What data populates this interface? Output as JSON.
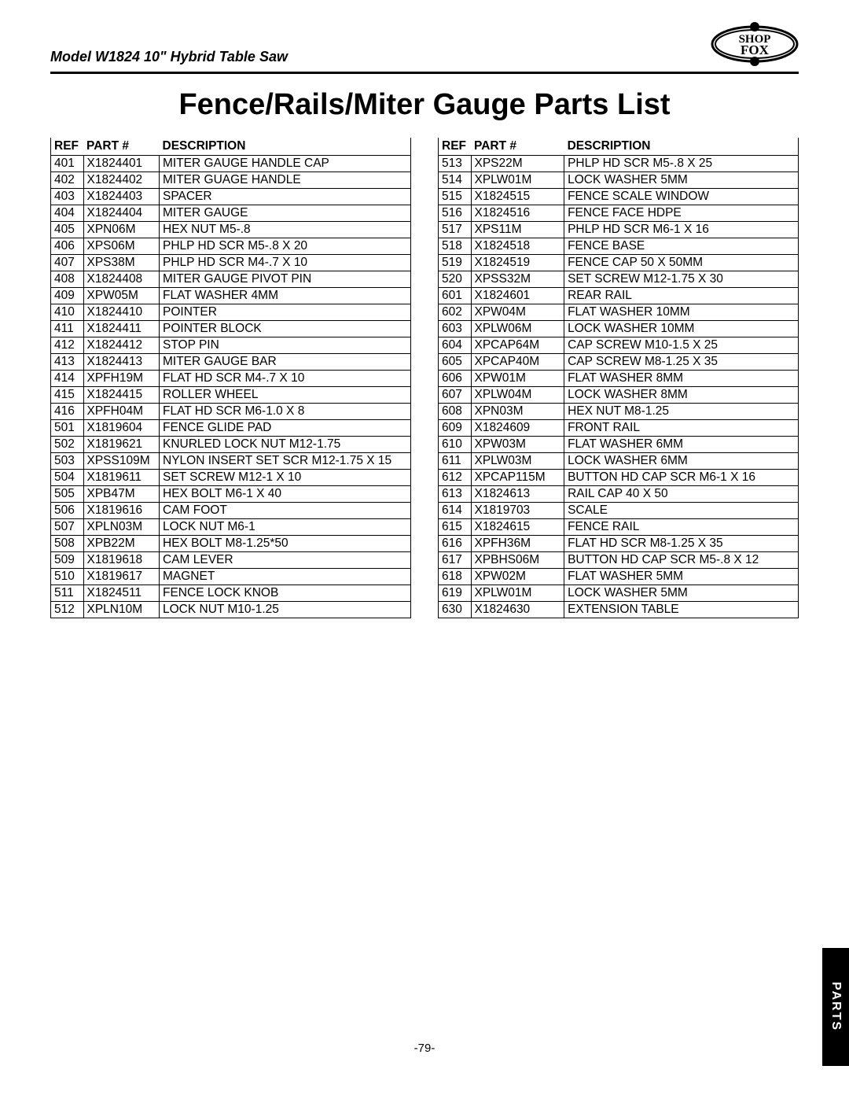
{
  "header": {
    "model": "Model W1824 10\" Hybrid Table Saw",
    "brand_top": "SHOP",
    "brand_bottom": "FOX"
  },
  "title": "Fence/Rails/Miter Gauge Parts List",
  "page_number": "-79-",
  "side_tab": "PARTS",
  "column_labels": {
    "ref": "REF",
    "part": "PART #",
    "desc": "DESCRIPTION"
  },
  "left_rows": [
    {
      "ref": "401",
      "part": "X1824401",
      "desc": "MITER GAUGE HANDLE CAP"
    },
    {
      "ref": "402",
      "part": "X1824402",
      "desc": "MITER GUAGE HANDLE"
    },
    {
      "ref": "403",
      "part": "X1824403",
      "desc": "SPACER"
    },
    {
      "ref": "404",
      "part": "X1824404",
      "desc": "MITER GAUGE"
    },
    {
      "ref": "405",
      "part": "XPN06M",
      "desc": "HEX NUT M5-.8"
    },
    {
      "ref": "406",
      "part": "XPS06M",
      "desc": "PHLP HD SCR M5-.8 X 20"
    },
    {
      "ref": "407",
      "part": "XPS38M",
      "desc": "PHLP HD SCR M4-.7 X 10"
    },
    {
      "ref": "408",
      "part": "X1824408",
      "desc": "MITER GAUGE PIVOT PIN"
    },
    {
      "ref": "409",
      "part": "XPW05M",
      "desc": "FLAT WASHER 4MM"
    },
    {
      "ref": "410",
      "part": "X1824410",
      "desc": "POINTER"
    },
    {
      "ref": "411",
      "part": "X1824411",
      "desc": "POINTER BLOCK"
    },
    {
      "ref": "412",
      "part": "X1824412",
      "desc": "STOP PIN"
    },
    {
      "ref": "413",
      "part": "X1824413",
      "desc": "MITER GAUGE BAR"
    },
    {
      "ref": "414",
      "part": "XPFH19M",
      "desc": "FLAT HD SCR M4-.7 X 10"
    },
    {
      "ref": "415",
      "part": "X1824415",
      "desc": "ROLLER WHEEL"
    },
    {
      "ref": "416",
      "part": "XPFH04M",
      "desc": "FLAT HD SCR M6-1.0 X 8"
    },
    {
      "ref": "501",
      "part": "X1819604",
      "desc": "FENCE GLIDE PAD"
    },
    {
      "ref": "502",
      "part": "X1819621",
      "desc": "KNURLED LOCK NUT M12-1.75"
    },
    {
      "ref": "503",
      "part": "XPSS109M",
      "desc": "NYLON INSERT SET SCR M12-1.75 X 15"
    },
    {
      "ref": "504",
      "part": "X1819611",
      "desc": "SET SCREW M12-1 X 10"
    },
    {
      "ref": "505",
      "part": "XPB47M",
      "desc": "HEX BOLT M6-1 X 40"
    },
    {
      "ref": "506",
      "part": "X1819616",
      "desc": "CAM FOOT"
    },
    {
      "ref": "507",
      "part": "XPLN03M",
      "desc": "LOCK NUT M6-1"
    },
    {
      "ref": "508",
      "part": "XPB22M",
      "desc": "HEX BOLT M8-1.25*50"
    },
    {
      "ref": "509",
      "part": "X1819618",
      "desc": "CAM LEVER"
    },
    {
      "ref": "510",
      "part": "X1819617",
      "desc": "MAGNET"
    },
    {
      "ref": "511",
      "part": "X1824511",
      "desc": "FENCE LOCK KNOB"
    },
    {
      "ref": "512",
      "part": "XPLN10M",
      "desc": "LOCK NUT M10-1.25"
    }
  ],
  "right_rows": [
    {
      "ref": "513",
      "part": "XPS22M",
      "desc": "PHLP HD SCR M5-.8 X 25"
    },
    {
      "ref": "514",
      "part": "XPLW01M",
      "desc": "LOCK WASHER 5MM"
    },
    {
      "ref": "515",
      "part": "X1824515",
      "desc": "FENCE SCALE WINDOW"
    },
    {
      "ref": "516",
      "part": "X1824516",
      "desc": "FENCE FACE HDPE"
    },
    {
      "ref": "517",
      "part": "XPS11M",
      "desc": "PHLP HD SCR M6-1 X 16"
    },
    {
      "ref": "518",
      "part": "X1824518",
      "desc": "FENCE BASE"
    },
    {
      "ref": "519",
      "part": "X1824519",
      "desc": "FENCE CAP 50 X 50MM"
    },
    {
      "ref": "520",
      "part": "XPSS32M",
      "desc": "SET SCREW M12-1.75 X 30"
    },
    {
      "ref": "601",
      "part": "X1824601",
      "desc": "REAR RAIL"
    },
    {
      "ref": "602",
      "part": "XPW04M",
      "desc": "FLAT WASHER 10MM"
    },
    {
      "ref": "603",
      "part": "XPLW06M",
      "desc": "LOCK WASHER 10MM"
    },
    {
      "ref": "604",
      "part": "XPCAP64M",
      "desc": "CAP SCREW M10-1.5 X 25"
    },
    {
      "ref": "605",
      "part": "XPCAP40M",
      "desc": "CAP SCREW M8-1.25 X 35"
    },
    {
      "ref": "606",
      "part": "XPW01M",
      "desc": "FLAT WASHER 8MM"
    },
    {
      "ref": "607",
      "part": "XPLW04M",
      "desc": "LOCK WASHER 8MM"
    },
    {
      "ref": "608",
      "part": "XPN03M",
      "desc": "HEX NUT M8-1.25"
    },
    {
      "ref": "609",
      "part": "X1824609",
      "desc": "FRONT RAIL"
    },
    {
      "ref": "610",
      "part": "XPW03M",
      "desc": "FLAT WASHER 6MM"
    },
    {
      "ref": "611",
      "part": "XPLW03M",
      "desc": "LOCK WASHER 6MM"
    },
    {
      "ref": "612",
      "part": "XPCAP115M",
      "desc": "BUTTON HD CAP SCR M6-1 X 16"
    },
    {
      "ref": "613",
      "part": "X1824613",
      "desc": "RAIL CAP  40 X 50"
    },
    {
      "ref": "614",
      "part": "X1819703",
      "desc": "SCALE"
    },
    {
      "ref": "615",
      "part": "X1824615",
      "desc": "FENCE RAIL"
    },
    {
      "ref": "616",
      "part": "XPFH36M",
      "desc": "FLAT HD SCR M8-1.25 X 35"
    },
    {
      "ref": "617",
      "part": "XPBHS06M",
      "desc": "BUTTON HD CAP SCR M5-.8 X 12"
    },
    {
      "ref": "618",
      "part": "XPW02M",
      "desc": "FLAT WASHER 5MM"
    },
    {
      "ref": "619",
      "part": "XPLW01M",
      "desc": "LOCK WASHER 5MM"
    },
    {
      "ref": "630",
      "part": "X1824630",
      "desc": "EXTENSION TABLE"
    }
  ]
}
